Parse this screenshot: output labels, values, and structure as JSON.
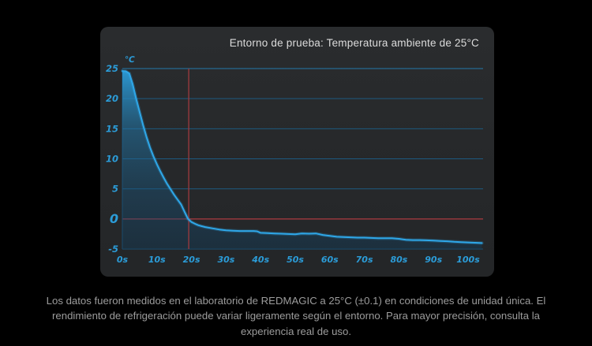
{
  "chart_data": {
    "type": "area",
    "title": "Entorno de prueba: Temperatura ambiente de 25°C",
    "y_unit_label": "℃",
    "x_unit": "s",
    "xlim": [
      0,
      104
    ],
    "ylim": [
      -5,
      25
    ],
    "grid": "horizontal-only",
    "x": [
      0,
      1,
      2,
      3,
      4,
      5,
      6,
      7,
      8,
      9,
      10,
      11,
      12,
      13,
      14,
      15,
      16,
      17,
      18,
      19,
      20,
      21,
      22,
      23,
      24,
      26,
      28,
      30,
      32,
      34,
      36,
      38,
      39,
      40,
      42,
      44,
      46,
      48,
      50,
      52,
      54,
      56,
      58,
      60,
      62,
      64,
      66,
      68,
      70,
      72,
      74,
      76,
      78,
      80,
      82,
      84,
      86,
      88,
      90,
      92,
      94,
      96,
      98,
      100,
      102,
      104
    ],
    "y": [
      24.6,
      24.55,
      24.2,
      22.4,
      20.0,
      17.8,
      15.6,
      13.6,
      11.9,
      10.4,
      9.1,
      7.9,
      6.8,
      5.8,
      4.9,
      4.0,
      3.2,
      2.4,
      1.2,
      0.0,
      -0.5,
      -0.8,
      -1.05,
      -1.2,
      -1.35,
      -1.55,
      -1.75,
      -1.9,
      -1.95,
      -2.0,
      -2.0,
      -2.0,
      -2.05,
      -2.3,
      -2.35,
      -2.4,
      -2.45,
      -2.5,
      -2.55,
      -2.4,
      -2.45,
      -2.4,
      -2.65,
      -2.8,
      -2.95,
      -3.0,
      -3.05,
      -3.1,
      -3.1,
      -3.15,
      -3.2,
      -3.2,
      -3.2,
      -3.3,
      -3.45,
      -3.5,
      -3.5,
      -3.55,
      -3.6,
      -3.65,
      -3.7,
      -3.8,
      -3.85,
      -3.9,
      -3.95,
      -4.0
    ],
    "yticks": [
      {
        "v": 25,
        "label": "25",
        "emphasis": false
      },
      {
        "v": 20,
        "label": "20",
        "emphasis": false
      },
      {
        "v": 15,
        "label": "15",
        "emphasis": false
      },
      {
        "v": 10,
        "label": "10",
        "emphasis": false
      },
      {
        "v": 5,
        "label": "5",
        "emphasis": false
      },
      {
        "v": 0,
        "label": "0",
        "emphasis": true
      },
      {
        "v": -5,
        "label": "-5",
        "emphasis": false
      }
    ],
    "xticks": [
      {
        "v": 0,
        "label": "0s"
      },
      {
        "v": 10,
        "label": "10s"
      },
      {
        "v": 20,
        "label": "20s"
      },
      {
        "v": 30,
        "label": "30s"
      },
      {
        "v": 40,
        "label": "40s"
      },
      {
        "v": 50,
        "label": "50s"
      },
      {
        "v": 60,
        "label": "60s"
      },
      {
        "v": 70,
        "label": "70s"
      },
      {
        "v": 80,
        "label": "80s"
      },
      {
        "v": 90,
        "label": "90s"
      },
      {
        "v": 100,
        "label": "100s"
      }
    ],
    "crosshair": {
      "t": 19.2,
      "temp": 0
    },
    "colors": {
      "panel_bg": "#26282a",
      "title_text": "#dcdcdc",
      "axis_label": "#2b9cd8",
      "grid": "#1d5a80",
      "grid_top": "#2478aa",
      "axis_border": "#1c4e70",
      "red_line": "#a03a3e",
      "curve_line": "#2fa7e8",
      "fill_top": "rgba(44,160,222,0.95)",
      "fill_mid1": "rgba(34,120,170,0.55)",
      "fill_mid2": "rgba(24,85,125,0.42)",
      "fill_bottom": "rgba(16,60,92,0.40)"
    },
    "legend": null
  },
  "caption": "Los datos fueron medidos en el laboratorio de REDMAGIC a 25°C (±0.1) en condiciones de unidad única. El rendimiento de refrigeración puede variar ligeramente según el entorno. Para mayor precisión, consulta la experiencia real de uso."
}
